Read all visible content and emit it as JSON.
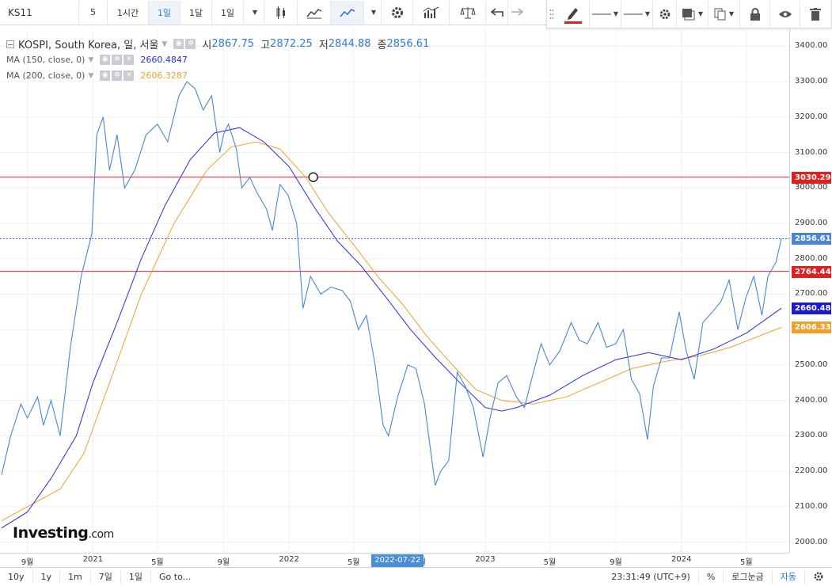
{
  "toolbar": {
    "symbol": "KS11",
    "intervals": [
      "5",
      "1시간",
      "1일",
      "1달",
      "1일"
    ],
    "active_interval_index": 2,
    "accent": "#2f7bdc",
    "draw_color": "#e02020"
  },
  "legend": {
    "title": "KOSPI, South Korea, 일, 서울",
    "o_label": "시",
    "o": "2867.75",
    "h_label": "고",
    "h": "2872.25",
    "l_label": "저",
    "l": "2844.88",
    "c_label": "종",
    "c": "2856.61",
    "ma150_label": "MA (150, close, 0)",
    "ma150_value": "2660.4847",
    "ma150_color": "#2b2be0",
    "ma200_label": "MA (200, close, 0)",
    "ma200_value": "2606.3287",
    "ma200_color": "#f0a030"
  },
  "price_tags": {
    "hline_upper": "3030.29",
    "last": "2856.61",
    "hline_lower": "2764.44",
    "ma150": "2660.48",
    "ma200": "2606.33"
  },
  "crosshair_date": "2022-07-22",
  "footer": {
    "ranges": [
      "10y",
      "1y",
      "1m",
      "7일",
      "1일",
      "Go to..."
    ],
    "time": "23:31:49 (UTC+9)",
    "pct": "%",
    "log": "로그눈금",
    "auto": "자동"
  },
  "brand": {
    "name": "Investing",
    "suffix": ".com"
  },
  "chart_data": {
    "type": "line",
    "ylim": [
      1970,
      3450
    ],
    "y_ticks": [
      2000,
      2100,
      2200,
      2300,
      2400,
      2500,
      2600,
      2700,
      2800,
      2900,
      3000,
      3100,
      3200,
      3300,
      3400
    ],
    "y_tick_labels": [
      "2000.00",
      "2100.00",
      "2200.00",
      "2300.00",
      "2400.00",
      "2500.00",
      "2600.00",
      "2700.00",
      "2800.00",
      "2900.00",
      "3000.00",
      "3100.00",
      "3200.00",
      "3300.00",
      "3400.00"
    ],
    "x_ticks": [
      {
        "label": "9월",
        "date": "2020-09-01"
      },
      {
        "label": "2021",
        "date": "2021-01-01"
      },
      {
        "label": "5월",
        "date": "2021-05-01"
      },
      {
        "label": "9월",
        "date": "2021-09-01"
      },
      {
        "label": "2022",
        "date": "2022-01-01"
      },
      {
        "label": "5월",
        "date": "2022-05-01"
      },
      {
        "label": "9월",
        "date": "2022-09-01"
      },
      {
        "label": "2023",
        "date": "2023-01-01"
      },
      {
        "label": "5월",
        "date": "2023-05-01"
      },
      {
        "label": "9월",
        "date": "2023-09-01"
      },
      {
        "label": "2024",
        "date": "2024-01-01"
      },
      {
        "label": "5월",
        "date": "2024-05-01"
      }
    ],
    "horizontal_lines": [
      3030.29,
      2764.44
    ],
    "marker": {
      "date": "2022-02-15",
      "value": 3030.29
    },
    "series": [
      {
        "name": "KOSPI",
        "color": "#4a86d4",
        "points": [
          [
            "2020-07-15",
            2190
          ],
          [
            "2020-08-01",
            2300
          ],
          [
            "2020-08-20",
            2390
          ],
          [
            "2020-09-01",
            2350
          ],
          [
            "2020-09-20",
            2410
          ],
          [
            "2020-10-01",
            2330
          ],
          [
            "2020-10-15",
            2400
          ],
          [
            "2020-11-01",
            2300
          ],
          [
            "2020-11-20",
            2550
          ],
          [
            "2020-12-10",
            2750
          ],
          [
            "2020-12-30",
            2870
          ],
          [
            "2021-01-08",
            3150
          ],
          [
            "2021-01-20",
            3200
          ],
          [
            "2021-02-01",
            3050
          ],
          [
            "2021-02-15",
            3150
          ],
          [
            "2021-03-01",
            3000
          ],
          [
            "2021-03-20",
            3050
          ],
          [
            "2021-04-10",
            3150
          ],
          [
            "2021-05-01",
            3180
          ],
          [
            "2021-05-20",
            3130
          ],
          [
            "2021-06-10",
            3260
          ],
          [
            "2021-06-25",
            3300
          ],
          [
            "2021-07-10",
            3280
          ],
          [
            "2021-07-25",
            3220
          ],
          [
            "2021-08-10",
            3260
          ],
          [
            "2021-08-25",
            3100
          ],
          [
            "2021-09-01",
            3150
          ],
          [
            "2021-09-10",
            3180
          ],
          [
            "2021-09-25",
            3110
          ],
          [
            "2021-10-05",
            3000
          ],
          [
            "2021-10-20",
            3030
          ],
          [
            "2021-11-01",
            2990
          ],
          [
            "2021-11-20",
            2940
          ],
          [
            "2021-12-01",
            2880
          ],
          [
            "2021-12-15",
            3010
          ],
          [
            "2021-12-30",
            2980
          ],
          [
            "2022-01-15",
            2900
          ],
          [
            "2022-01-27",
            2660
          ],
          [
            "2022-02-10",
            2750
          ],
          [
            "2022-03-01",
            2700
          ],
          [
            "2022-03-20",
            2720
          ],
          [
            "2022-04-10",
            2710
          ],
          [
            "2022-04-25",
            2680
          ],
          [
            "2022-05-10",
            2600
          ],
          [
            "2022-05-25",
            2640
          ],
          [
            "2022-06-10",
            2500
          ],
          [
            "2022-06-25",
            2330
          ],
          [
            "2022-07-05",
            2300
          ],
          [
            "2022-07-22",
            2410
          ],
          [
            "2022-08-10",
            2500
          ],
          [
            "2022-08-25",
            2490
          ],
          [
            "2022-09-10",
            2390
          ],
          [
            "2022-09-30",
            2160
          ],
          [
            "2022-10-10",
            2200
          ],
          [
            "2022-10-25",
            2230
          ],
          [
            "2022-11-10",
            2480
          ],
          [
            "2022-11-25",
            2440
          ],
          [
            "2022-12-10",
            2380
          ],
          [
            "2022-12-28",
            2240
          ],
          [
            "2023-01-10",
            2350
          ],
          [
            "2023-01-25",
            2450
          ],
          [
            "2023-02-10",
            2470
          ],
          [
            "2023-02-28",
            2410
          ],
          [
            "2023-03-15",
            2380
          ],
          [
            "2023-03-30",
            2470
          ],
          [
            "2023-04-15",
            2560
          ],
          [
            "2023-05-01",
            2500
          ],
          [
            "2023-05-20",
            2540
          ],
          [
            "2023-06-10",
            2620
          ],
          [
            "2023-06-25",
            2570
          ],
          [
            "2023-07-10",
            2560
          ],
          [
            "2023-07-30",
            2620
          ],
          [
            "2023-08-15",
            2550
          ],
          [
            "2023-09-01",
            2560
          ],
          [
            "2023-09-15",
            2600
          ],
          [
            "2023-09-30",
            2460
          ],
          [
            "2023-10-15",
            2420
          ],
          [
            "2023-10-30",
            2290
          ],
          [
            "2023-11-10",
            2440
          ],
          [
            "2023-11-25",
            2520
          ],
          [
            "2023-12-10",
            2520
          ],
          [
            "2023-12-28",
            2650
          ],
          [
            "2024-01-10",
            2540
          ],
          [
            "2024-01-25",
            2460
          ],
          [
            "2024-02-10",
            2620
          ],
          [
            "2024-02-28",
            2650
          ],
          [
            "2024-03-15",
            2680
          ],
          [
            "2024-03-30",
            2740
          ],
          [
            "2024-04-15",
            2600
          ],
          [
            "2024-04-30",
            2690
          ],
          [
            "2024-05-15",
            2750
          ],
          [
            "2024-05-30",
            2640
          ],
          [
            "2024-06-10",
            2750
          ],
          [
            "2024-06-25",
            2790
          ],
          [
            "2024-07-05",
            2856.61
          ]
        ]
      },
      {
        "name": "MA (150, close, 0)",
        "color": "#2b2be0",
        "points": [
          [
            "2020-07-15",
            2040
          ],
          [
            "2020-09-01",
            2085
          ],
          [
            "2020-10-15",
            2180
          ],
          [
            "2020-12-01",
            2300
          ],
          [
            "2021-01-01",
            2450
          ],
          [
            "2021-02-15",
            2620
          ],
          [
            "2021-04-01",
            2800
          ],
          [
            "2021-05-15",
            2950
          ],
          [
            "2021-07-01",
            3080
          ],
          [
            "2021-08-15",
            3155
          ],
          [
            "2021-10-01",
            3170
          ],
          [
            "2021-11-15",
            3130
          ],
          [
            "2022-01-01",
            3060
          ],
          [
            "2022-02-15",
            2950
          ],
          [
            "2022-04-01",
            2850
          ],
          [
            "2022-05-15",
            2780
          ],
          [
            "2022-07-01",
            2690
          ],
          [
            "2022-08-15",
            2600
          ],
          [
            "2022-10-01",
            2520
          ],
          [
            "2022-11-15",
            2450
          ],
          [
            "2023-01-01",
            2380
          ],
          [
            "2023-02-01",
            2370
          ],
          [
            "2023-03-01",
            2380
          ],
          [
            "2023-05-01",
            2415
          ],
          [
            "2023-07-01",
            2470
          ],
          [
            "2023-09-01",
            2515
          ],
          [
            "2023-11-01",
            2535
          ],
          [
            "2024-01-01",
            2515
          ],
          [
            "2024-03-01",
            2545
          ],
          [
            "2024-05-01",
            2590
          ],
          [
            "2024-07-05",
            2660.48
          ]
        ]
      },
      {
        "name": "MA (200, close, 0)",
        "color": "#f0a030",
        "points": [
          [
            "2020-07-15",
            2060
          ],
          [
            "2020-09-01",
            2100
          ],
          [
            "2020-11-01",
            2150
          ],
          [
            "2020-12-15",
            2250
          ],
          [
            "2021-02-01",
            2450
          ],
          [
            "2021-04-01",
            2700
          ],
          [
            "2021-06-01",
            2900
          ],
          [
            "2021-08-01",
            3050
          ],
          [
            "2021-09-15",
            3115
          ],
          [
            "2021-11-01",
            3130
          ],
          [
            "2021-12-15",
            3110
          ],
          [
            "2022-02-01",
            3030
          ],
          [
            "2022-03-15",
            2930
          ],
          [
            "2022-05-01",
            2840
          ],
          [
            "2022-06-15",
            2750
          ],
          [
            "2022-08-01",
            2670
          ],
          [
            "2022-09-15",
            2580
          ],
          [
            "2022-11-01",
            2500
          ],
          [
            "2022-12-15",
            2430
          ],
          [
            "2023-02-01",
            2400
          ],
          [
            "2023-04-01",
            2390
          ],
          [
            "2023-06-01",
            2410
          ],
          [
            "2023-08-01",
            2450
          ],
          [
            "2023-10-01",
            2490
          ],
          [
            "2023-12-01",
            2510
          ],
          [
            "2024-02-01",
            2525
          ],
          [
            "2024-04-01",
            2550
          ],
          [
            "2024-07-05",
            2606.33
          ]
        ]
      }
    ]
  }
}
